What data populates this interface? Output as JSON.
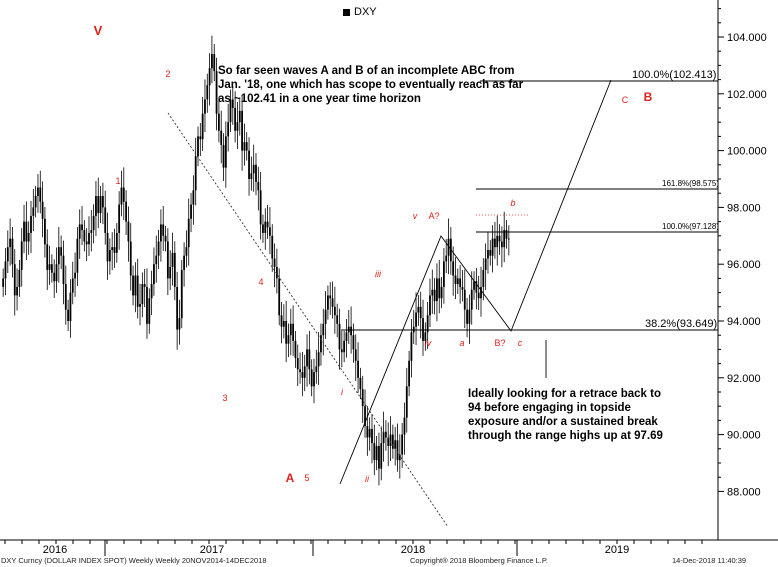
{
  "legend": {
    "ticker": "DXY"
  },
  "notes": {
    "top": "So far seen waves A and B of an incomplete ABC from Jan. '18, one which has scope to eventually reach as far as ~102.41 in a one year time horizon",
    "right": "Ideally looking for a retrace back to 94 before engaging in topside exposure and/or a sustained break through the range highs up at 97.69"
  },
  "footer": {
    "left": "DXY Curncy (DOLLAR INDEX SPOT) Weekly  Weekly 20NOV2014-14DEC2018",
    "center": "Copyright® 2018 Bloomberg Finance L.P.",
    "right": "14-Dec-2018 11:40:39"
  },
  "colors": {
    "wave_label": "#e0201a",
    "candle": "#000000",
    "trendline": "#000000"
  },
  "chart_data": {
    "type": "candlestick",
    "title": "",
    "series_name": "DXY",
    "x_tick_labels": [
      "2016",
      "2017",
      "2018",
      "2019"
    ],
    "y_ticks": [
      88,
      90,
      92,
      94,
      96,
      98,
      100,
      102,
      104
    ],
    "y_tick_labels": [
      "88.000",
      "90.000",
      "92.000",
      "94.000",
      "96.000",
      "98.000",
      "100.000",
      "102.000",
      "104.000"
    ],
    "ylim": [
      86.7,
      105.3
    ],
    "grid": false,
    "weekly_closes_approx": [
      95.5,
      96.1,
      96.6,
      96.9,
      96.0,
      94.9,
      95.2,
      95.8,
      96.8,
      97.5,
      96.8,
      97.1,
      97.7,
      98.0,
      98.4,
      98.7,
      98.2,
      97.6,
      96.7,
      95.8,
      96.0,
      95.7,
      95.4,
      96.0,
      96.6,
      96.3,
      95.3,
      94.4,
      94.0,
      95.0,
      95.5,
      95.7,
      96.9,
      97.4,
      97.2,
      96.8,
      96.7,
      97.1,
      97.2,
      97.7,
      98.4,
      97.8,
      98.4,
      98.0,
      97.1,
      96.1,
      96.5,
      96.6,
      96.4,
      97.1,
      98.1,
      98.7,
      98.2,
      97.5,
      96.8,
      95.6,
      94.9,
      95.6,
      94.5,
      94.6,
      95.3,
      95.2,
      93.9,
      94.8,
      95.3,
      96.0,
      96.3,
      96.8,
      97.4,
      97.0,
      96.8,
      95.5,
      95.9,
      96.4,
      95.2,
      93.7,
      94.1,
      95.8,
      96.3,
      96.6,
      97.6,
      98.1,
      98.6,
      99.8,
      100.5,
      100.4,
      101.3,
      101.8,
      102.3,
      102.9,
      103.4,
      102.8,
      101.3,
      100.7,
      100.2,
      99.4,
      100.5,
      101.0,
      101.8,
      101.5,
      100.7,
      101.0,
      101.4,
      100.0,
      100.3,
      100.0,
      99.0,
      99.2,
      99.5,
      98.9,
      98.6,
      97.4,
      97.1,
      97.5,
      97.3,
      97.0,
      96.2,
      95.9,
      95.5,
      94.2,
      93.8,
      94.0,
      93.2,
      93.5,
      93.9,
      93.3,
      92.7,
      92.3,
      92.2,
      92.0,
      92.4,
      93.0,
      92.3,
      91.7,
      92.2,
      92.4,
      92.9,
      93.5,
      93.9,
      94.4,
      94.9,
      94.8,
      94.5,
      94.2,
      93.9,
      93.0,
      92.9,
      93.3,
      93.6,
      93.8,
      93.5,
      93.0,
      92.6,
      92.0,
      91.6,
      91.0,
      90.3,
      89.9,
      90.2,
      89.7,
      89.1,
      89.6,
      88.8,
      89.7,
      90.1,
      89.9,
      89.6,
      90.0,
      89.5,
      89.8,
      89.1,
      89.3,
      90.0,
      90.6,
      91.7,
      92.6,
      93.6,
      93.8,
      94.3,
      94.5,
      94.1,
      93.3,
      93.6,
      94.2,
      94.9,
      95.1,
      94.7,
      95.5,
      94.8,
      95.2,
      96.1,
      96.3,
      96.9,
      96.1,
      95.6,
      95.3,
      95.5,
      95.2,
      95.1,
      94.4,
      93.9,
      94.4,
      95.1,
      95.4,
      95.0,
      94.8,
      95.2,
      95.8,
      96.2,
      96.5,
      96.3,
      96.9,
      96.6,
      97.0,
      96.8,
      96.6,
      97.2,
      96.9,
      96.9
    ],
    "horizontal_levels": [
      {
        "label": "100.0%(102.413)",
        "value": 102.413
      },
      {
        "label": "161.8%(98.575)",
        "value": 98.575
      },
      {
        "label": "100.0%(97.128)",
        "value": 97.128
      },
      {
        "label": "38.2%(93.649)",
        "value": 93.649
      }
    ],
    "wave_labels": [
      {
        "text": "V",
        "bold": true
      },
      {
        "text": "1"
      },
      {
        "text": "2"
      },
      {
        "text": "3"
      },
      {
        "text": "4"
      },
      {
        "text": "5"
      },
      {
        "text": "A",
        "bold": true
      },
      {
        "text": "i",
        "italic": true
      },
      {
        "text": "ii",
        "italic": true
      },
      {
        "text": "iii",
        "italic": true
      },
      {
        "text": "iv",
        "italic": true
      },
      {
        "text": "v",
        "italic": true
      },
      {
        "text": "A?"
      },
      {
        "text": "a",
        "italic": true
      },
      {
        "text": "b",
        "italic": true
      },
      {
        "text": "B?"
      },
      {
        "text": "c",
        "italic": true
      },
      {
        "text": "C"
      },
      {
        "text": "B",
        "bold": true
      }
    ]
  }
}
